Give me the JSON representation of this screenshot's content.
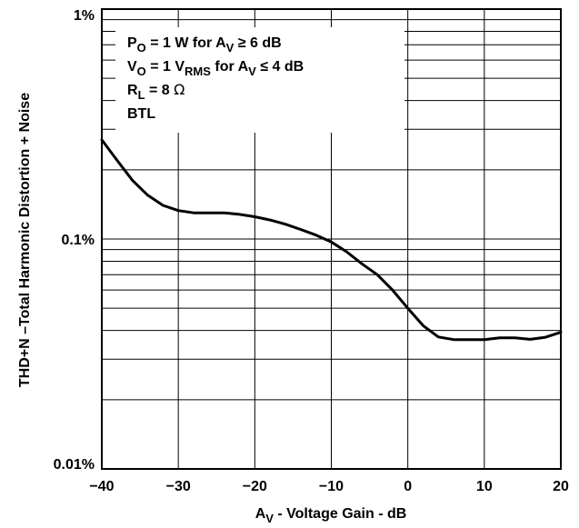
{
  "chart_data": {
    "type": "line",
    "xlabel": "Aᵥ - Voltage Gain - dB",
    "xlabel_main": "A",
    "xlabel_sub": "V",
    "xlabel_rest": " - Voltage Gain - dB",
    "ylabel": "THD+N –Total Harmonic Distortion + Noise",
    "xlim": [
      -40,
      20
    ],
    "ylim": [
      0.01,
      1
    ],
    "yscale": "log",
    "grid": true,
    "x_ticks": [
      -40,
      -30,
      -20,
      -10,
      0,
      10,
      20
    ],
    "x_tick_labels": [
      "−40",
      "−30",
      "−20",
      "−10",
      "0",
      "10",
      "20"
    ],
    "y_ticks": [
      0.01,
      0.1,
      1
    ],
    "y_tick_labels": [
      "0.01%",
      "0.1%",
      "1%"
    ],
    "annotations": {
      "line1": {
        "a": "P",
        "a_sub": "O",
        "b": " = 1 W for A",
        "b_sub": "V",
        "c": " ≥ 6 dB"
      },
      "line2": {
        "a": "V",
        "a_sub": "O",
        "b": " = 1 V",
        "b_sub": "RMS",
        "c": " for A",
        "c_sub": "V",
        "d": " ≤ 4 dB"
      },
      "line3": {
        "a": "R",
        "a_sub": "L",
        "b": " = 8 ",
        "c": "Ω"
      },
      "line4": "BTL"
    },
    "series": [
      {
        "x": [
          -40,
          -38,
          -36,
          -34,
          -32,
          -30,
          -28,
          -26,
          -24,
          -22,
          -20,
          -18,
          -16,
          -14,
          -12,
          -10,
          -8,
          -6,
          -4,
          -2,
          0,
          2,
          4,
          6,
          8,
          10,
          12,
          14,
          16,
          18,
          20
        ],
        "y": [
          0.27,
          0.22,
          0.18,
          0.155,
          0.14,
          0.133,
          0.13,
          0.13,
          0.13,
          0.128,
          0.125,
          0.121,
          0.116,
          0.11,
          0.104,
          0.097,
          0.088,
          0.078,
          0.07,
          0.06,
          0.05,
          0.042,
          0.0375,
          0.0365,
          0.0365,
          0.0365,
          0.0372,
          0.0372,
          0.0366,
          0.0374,
          0.0393
        ]
      }
    ]
  }
}
